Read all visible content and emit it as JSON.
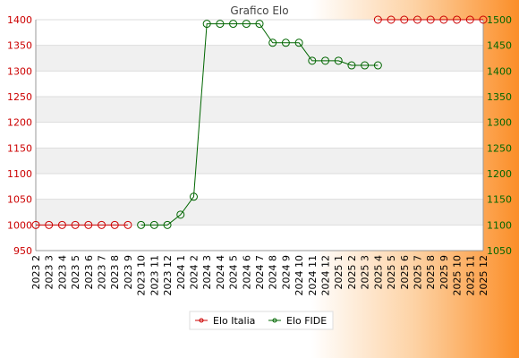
{
  "chart_data": {
    "type": "line",
    "title": "Grafico Elo",
    "categories": [
      "2023 2",
      "2023 3",
      "2023 4",
      "2023 5",
      "2023 6",
      "2023 7",
      "2023 8",
      "2023 9",
      "2023 10",
      "2023 11",
      "2023 12",
      "2024 1",
      "2024 2",
      "2024 3",
      "2024 4",
      "2024 5",
      "2024 6",
      "2024 7",
      "2024 8",
      "2024 9",
      "2024 10",
      "2024 11",
      "2024 12",
      "2025 1",
      "2025 2",
      "2025 3",
      "2025 4",
      "2025 5",
      "2025 6",
      "2025 7",
      "2025 8",
      "2025 9",
      "2025 10",
      "2025 11",
      "2025 12"
    ],
    "series": [
      {
        "name": "Elo Italia",
        "axis": "left",
        "color": "#cc0000",
        "values": [
          1000,
          1000,
          1000,
          1000,
          1000,
          1000,
          1000,
          1000,
          null,
          null,
          null,
          null,
          null,
          null,
          null,
          null,
          null,
          null,
          null,
          null,
          null,
          null,
          null,
          null,
          null,
          null,
          null,
          null,
          null,
          null,
          null,
          null,
          null,
          null,
          null
        ],
        "extra_points_off_scale": "2025 4 - 2025 12 drawn at top edge (value above 1400)"
      },
      {
        "name": "Elo FIDE",
        "axis": "right",
        "color": "#006600",
        "values": [
          null,
          null,
          null,
          null,
          null,
          null,
          null,
          null,
          1100,
          1100,
          1100,
          1120,
          1155,
          1492,
          1492,
          1492,
          1492,
          1492,
          1455,
          1455,
          1455,
          1420,
          1420,
          1420,
          1411,
          1411,
          1411,
          null,
          null,
          null,
          null,
          null,
          null,
          null,
          null
        ]
      }
    ],
    "italia_top_values": [
      1400,
      1400,
      1400,
      1400,
      1400,
      1400,
      1400,
      1400,
      1400
    ],
    "italia_top_start_index": 26,
    "yaxis_left": {
      "min": 950,
      "max": 1400,
      "ticks": [
        950,
        1000,
        1050,
        1100,
        1150,
        1200,
        1250,
        1300,
        1350,
        1400
      ],
      "color": "#cc0000"
    },
    "yaxis_right": {
      "min": 1050,
      "max": 1500,
      "ticks": [
        1050,
        1100,
        1150,
        1200,
        1250,
        1300,
        1350,
        1400,
        1450,
        1500
      ],
      "color": "#006600"
    },
    "grid": true,
    "legend_position": "bottom"
  }
}
